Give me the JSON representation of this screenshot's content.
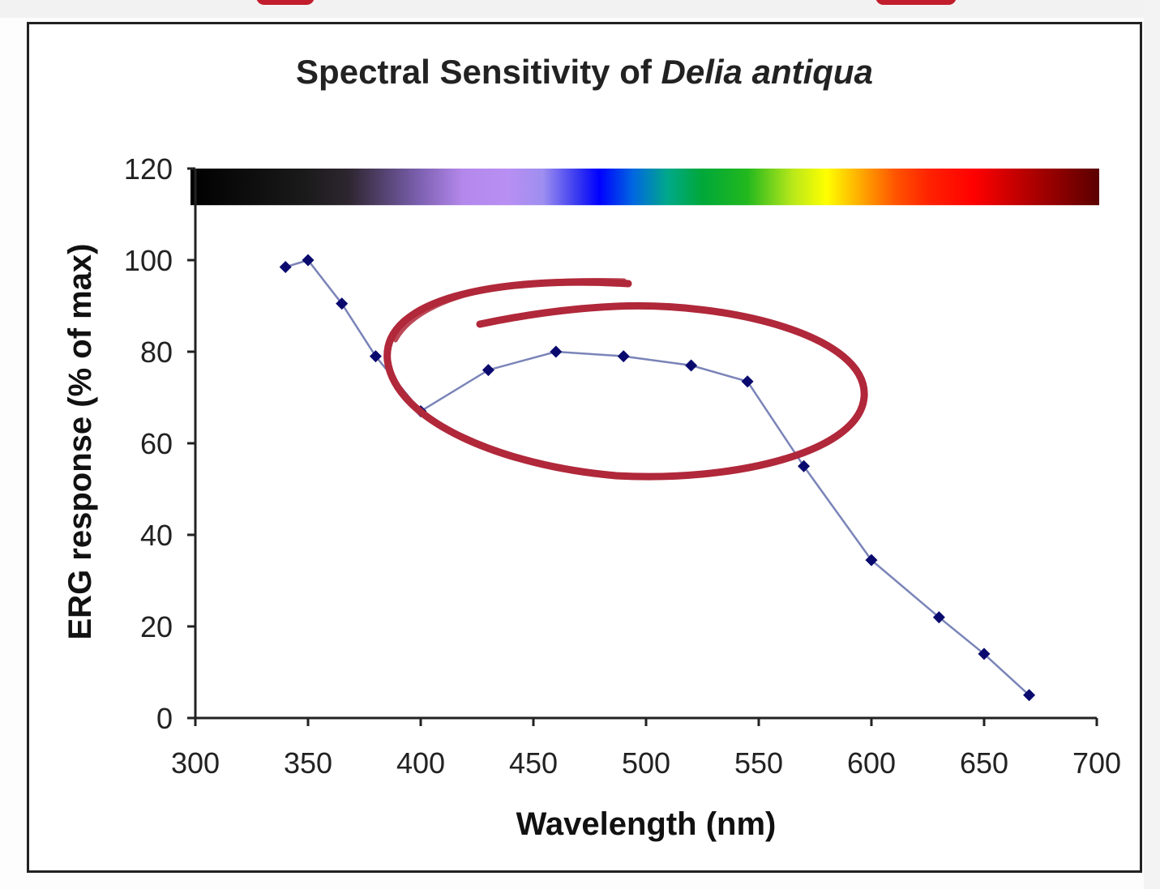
{
  "chart_data": {
    "type": "line",
    "title_prefix": "Spectral Sensitivity of ",
    "title_italic": "Delia antiqua",
    "xlabel": "Wavelength (nm)",
    "ylabel": "ERG response (% of max)",
    "xlim": [
      300,
      700
    ],
    "ylim": [
      0,
      120
    ],
    "x_ticks": [
      300,
      350,
      400,
      450,
      500,
      550,
      600,
      650,
      700
    ],
    "y_ticks": [
      0,
      20,
      40,
      60,
      80,
      100,
      120
    ],
    "grid": false,
    "legend": "none",
    "spectrum_bar": {
      "y_range": [
        112,
        120
      ],
      "x_range": [
        300,
        700
      ],
      "stops": [
        {
          "nm": 300,
          "color": "#000000"
        },
        {
          "nm": 350,
          "color": "#1a1a1a"
        },
        {
          "nm": 370,
          "color": "#2e2630"
        },
        {
          "nm": 400,
          "color": "#7a5fae"
        },
        {
          "nm": 420,
          "color": "#b488ec"
        },
        {
          "nm": 440,
          "color": "#b88ff2"
        },
        {
          "nm": 455,
          "color": "#9e8ff0"
        },
        {
          "nm": 470,
          "color": "#3a3af0"
        },
        {
          "nm": 480,
          "color": "#0000ff"
        },
        {
          "nm": 495,
          "color": "#0068e0"
        },
        {
          "nm": 510,
          "color": "#00a88a"
        },
        {
          "nm": 525,
          "color": "#00a83a"
        },
        {
          "nm": 545,
          "color": "#22b81e"
        },
        {
          "nm": 565,
          "color": "#b8e81a"
        },
        {
          "nm": 580,
          "color": "#ffff00"
        },
        {
          "nm": 595,
          "color": "#ffaa00"
        },
        {
          "nm": 610,
          "color": "#ff5500"
        },
        {
          "nm": 625,
          "color": "#ff2200"
        },
        {
          "nm": 645,
          "color": "#ff0000"
        },
        {
          "nm": 670,
          "color": "#b00000"
        },
        {
          "nm": 700,
          "color": "#5a0000"
        }
      ]
    },
    "series": [
      {
        "color": "#7a84b8",
        "marker_color": "#0a0a6e",
        "x": [
          340,
          350,
          365,
          380,
          400,
          430,
          460,
          490,
          520,
          545,
          570,
          600,
          630,
          650,
          670
        ],
        "y": [
          98.5,
          100,
          90.5,
          79,
          67,
          76,
          80,
          79,
          77,
          73.5,
          55,
          34.5,
          22,
          14,
          5
        ]
      }
    ],
    "annotation": {
      "shape": "hand-drawn ellipse",
      "color": "#b0283a",
      "encloses_x_range": [
        400,
        550
      ]
    }
  },
  "decor": {
    "top_mark_color": "#c21d2c"
  }
}
